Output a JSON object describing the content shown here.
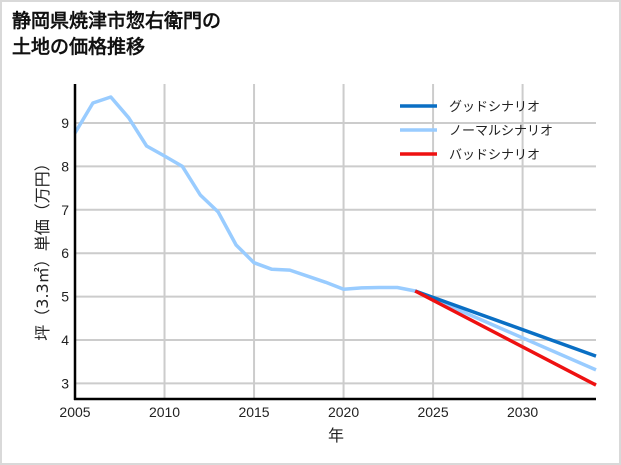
{
  "title_line1": "静岡県焼津市惣右衛門の",
  "title_line2": "土地の価格推移",
  "chart_data": {
    "type": "line",
    "title": "静岡県焼津市惣右衛門の土地の価格推移",
    "xlabel": "年",
    "ylabel": "坪（3.3㎡）単価（万円）",
    "xlim": [
      2005,
      2034.1
    ],
    "ylim": [
      2.65,
      9.9
    ],
    "xticks": [
      2005,
      2010,
      2015,
      2020,
      2025,
      2030
    ],
    "yticks": [
      3,
      4,
      5,
      6,
      7,
      8,
      9
    ],
    "grid": true,
    "legend_position": "upper right",
    "series": [
      {
        "name": "グッドシナリオ",
        "color": "#0a6fc4",
        "x": [
          2024,
          2034.1
        ],
        "values": [
          5.13,
          3.63
        ]
      },
      {
        "name": "ノーマルシナリオ",
        "color": "#99ccff",
        "x": [
          2005,
          2006,
          2007,
          2008,
          2009,
          2010,
          2011,
          2012,
          2013,
          2014,
          2015,
          2016,
          2017,
          2018,
          2019,
          2020,
          2021,
          2022,
          2023,
          2024,
          2034.1
        ],
        "values": [
          8.77,
          9.46,
          9.6,
          9.12,
          8.47,
          8.24,
          8.0,
          7.34,
          6.95,
          6.19,
          5.78,
          5.63,
          5.61,
          5.47,
          5.33,
          5.17,
          5.2,
          5.21,
          5.21,
          5.13,
          3.31
        ]
      },
      {
        "name": "バッドシナリオ",
        "color": "#ee1111",
        "x": [
          2024,
          2034.1
        ],
        "values": [
          5.13,
          2.96
        ]
      }
    ]
  }
}
